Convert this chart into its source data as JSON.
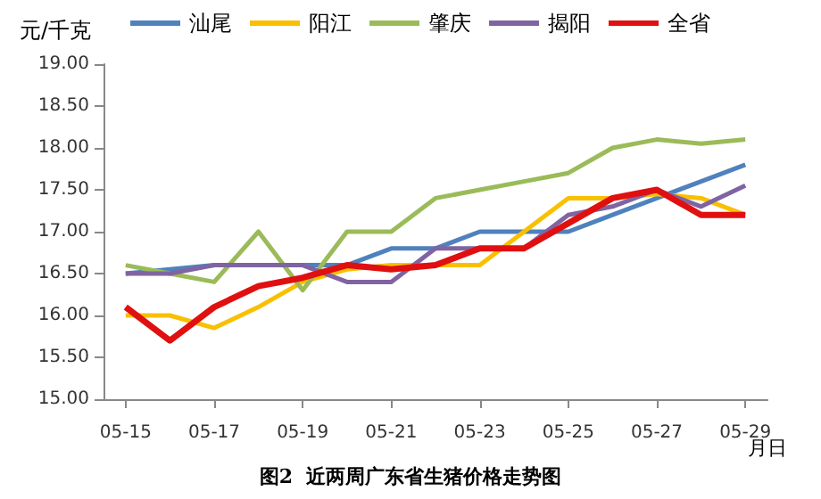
{
  "chart_data": {
    "type": "line",
    "title": "图2  近两周广东省生猪价格走势图",
    "ylabel": "元/千克",
    "xlabel": "月日",
    "categories": [
      "05-15",
      null,
      "05-17",
      null,
      "05-19",
      null,
      "05-21",
      null,
      "05-23",
      null,
      "05-25",
      null,
      "05-27",
      null,
      "05-29"
    ],
    "series": [
      {
        "name": "汕尾",
        "color": "#4f81bd",
        "values": [
          16.5,
          16.55,
          16.6,
          16.6,
          16.6,
          16.6,
          16.8,
          16.8,
          17.0,
          17.0,
          17.0,
          17.2,
          17.4,
          17.6,
          17.8
        ]
      },
      {
        "name": "阳江",
        "color": "#f9c000",
        "values": [
          16.0,
          16.0,
          15.85,
          16.1,
          16.4,
          16.55,
          16.6,
          16.6,
          16.6,
          17.0,
          17.4,
          17.4,
          17.45,
          17.4,
          17.2
        ]
      },
      {
        "name": "肇庆",
        "color": "#9bbb59",
        "values": [
          16.6,
          16.5,
          16.4,
          17.0,
          16.3,
          17.0,
          17.0,
          17.4,
          17.5,
          17.6,
          17.7,
          18.0,
          18.1,
          18.05,
          18.1
        ]
      },
      {
        "name": "揭阳",
        "color": "#8064a2",
        "values": [
          16.5,
          16.5,
          16.6,
          16.6,
          16.6,
          16.4,
          16.4,
          16.8,
          16.8,
          16.8,
          17.2,
          17.3,
          17.5,
          17.3,
          17.55
        ]
      },
      {
        "name": "全省",
        "color": "#e01010",
        "values": [
          16.1,
          15.7,
          16.1,
          16.35,
          16.45,
          16.6,
          16.55,
          16.6,
          16.8,
          16.8,
          17.1,
          17.4,
          17.5,
          17.2,
          17.2
        ]
      }
    ],
    "ylim": [
      15,
      19
    ],
    "yticks": [
      {
        "value": 15,
        "label": "15.00"
      },
      {
        "value": 15.5,
        "label": "15.50"
      },
      {
        "value": 16,
        "label": "16.00"
      },
      {
        "value": 16.5,
        "label": "16.50"
      },
      {
        "value": 17,
        "label": "17.00"
      },
      {
        "value": 17.5,
        "label": "17.50"
      },
      {
        "value": 18,
        "label": "18.00"
      },
      {
        "value": 18.5,
        "label": "18.50"
      },
      {
        "value": 19,
        "label": "19.00"
      }
    ],
    "grid": false,
    "legend": "top",
    "marker": "none",
    "line_style": "solid"
  }
}
